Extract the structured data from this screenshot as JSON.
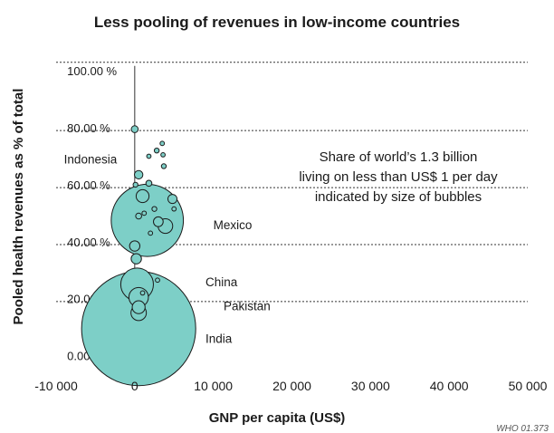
{
  "chart_data": {
    "type": "scatter",
    "title": "Less pooling of revenues in low-income countries",
    "xlabel": "GNP per capita (US$)",
    "ylabel": "Pooled health revenues as % of total",
    "xlim": [
      -10000,
      50000
    ],
    "ylim": [
      -3,
      108
    ],
    "x_tick_labels": [
      "-10 000",
      "0",
      "10 000",
      "20 000",
      "30 000",
      "40 000",
      "50 000"
    ],
    "x_ticks": [
      -10000,
      0,
      10000,
      20000,
      30000,
      40000,
      50000
    ],
    "y_tick_labels": [
      "100.00 %",
      "80.00 %",
      "60.00 %",
      "40.00 %",
      "20.00 %",
      "0.00 %"
    ],
    "y_ticks": [
      100,
      80,
      60,
      40,
      20,
      0
    ],
    "grid_lines_y": [
      103,
      79,
      59,
      39,
      19
    ],
    "bubble_meaning": "Share of world’s 1.3 billion living on less than US$ 1 per day indicated by size of bubbles",
    "points": [
      {
        "x": 0,
        "y": 79.5,
        "share": 0.2
      },
      {
        "x": 1800,
        "y": 70,
        "share": 0.05
      },
      {
        "x": 2800,
        "y": 72,
        "share": 0.1
      },
      {
        "x": 3500,
        "y": 74.5,
        "share": 0.05
      },
      {
        "x": 3600,
        "y": 70.5,
        "share": 0.05
      },
      {
        "x": 3700,
        "y": 66.5,
        "share": 0.1
      },
      {
        "x": 500,
        "y": 63.5,
        "share": 0.3
      },
      {
        "x": 100,
        "y": 60,
        "share": 0.1
      },
      {
        "x": 1800,
        "y": 60.5,
        "share": 0.15
      },
      {
        "x": 1000,
        "y": 56,
        "share": 0.7
      },
      {
        "x": 4800,
        "y": 55,
        "share": 0.35
      },
      {
        "x": 5000,
        "y": 51.5,
        "share": 0.05
      },
      {
        "x": 500,
        "y": 49,
        "share": 0.15
      },
      {
        "x": 1200,
        "y": 50,
        "share": 0.05
      },
      {
        "x": 2500,
        "y": 51.5,
        "share": 0.1
      },
      {
        "x": 1600,
        "y": 47.5,
        "share": 22
      },
      {
        "x": 3000,
        "y": 47,
        "share": 0.4
      },
      {
        "x": 3900,
        "y": 45.5,
        "share": 0.9
      },
      {
        "x": 2000,
        "y": 43,
        "share": 0.05
      },
      {
        "x": 0,
        "y": 38.5,
        "share": 0.45
      },
      {
        "x": 200,
        "y": 34,
        "share": 0.45
      },
      {
        "x": 300,
        "y": 25,
        "share": 4.5
      },
      {
        "x": 2900,
        "y": 26.5,
        "share": 0.05
      },
      {
        "x": 1000,
        "y": 22,
        "share": 0.05
      },
      {
        "x": 500,
        "y": 20.5,
        "share": 1.6
      },
      {
        "x": 500,
        "y": 17,
        "share": 0.7
      },
      {
        "x": 500,
        "y": 15,
        "share": 1.0
      },
      {
        "x": 500,
        "y": 9.5,
        "share": 55
      }
    ],
    "annotations": [
      {
        "text": "Indonesia",
        "x": -9000,
        "y": 69
      },
      {
        "text": "Mexico",
        "x": 10000,
        "y": 46
      },
      {
        "text": "China",
        "x": 9000,
        "y": 26
      },
      {
        "text": "Pakistan",
        "x": 11300,
        "y": 17.5
      },
      {
        "text": "India",
        "x": 9000,
        "y": 6
      }
    ],
    "note_lines": [
      "Share of world’s 1.3 billion",
      "living on less than US$ 1 per day",
      "indicated by size of bubbles"
    ],
    "bubble_color": "#7dcfc7",
    "bubble_stroke": "#1a1a1a",
    "credit": "WHO 01.373"
  }
}
